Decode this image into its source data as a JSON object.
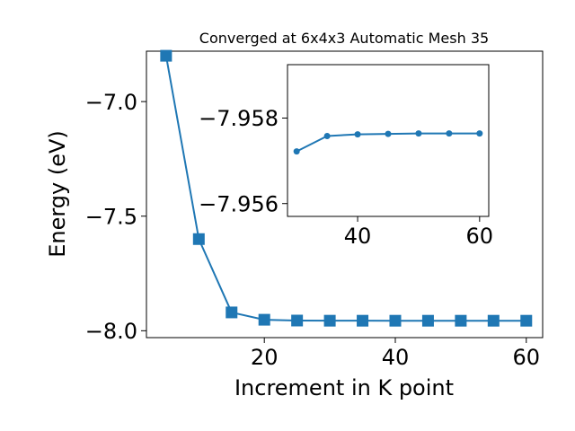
{
  "chart_data": [
    {
      "type": "line",
      "title": "Converged at 6x4x3 Automatic Mesh 35",
      "xlabel": "Increment in K point",
      "ylabel": "Energy (eV)",
      "xlim": [
        2,
        62.5
      ],
      "ylim": [
        -8.03,
        -6.78
      ],
      "xticks": [
        20,
        40,
        60
      ],
      "xtick_labels": [
        "20",
        "40",
        "60"
      ],
      "yticks": [
        -7.0,
        -7.5,
        -8.0
      ],
      "ytick_labels": [
        "−7.0",
        "−7.5",
        "−8.0"
      ],
      "grid": false,
      "marker": "square",
      "color": "#1f77b4",
      "series": [
        {
          "x": [
            5,
            10,
            15,
            20,
            25,
            30,
            35,
            40,
            45,
            50,
            55,
            60
          ],
          "y": [
            -6.8,
            -7.6,
            -7.92,
            -7.952,
            -7.9555,
            -7.9562,
            -7.95625,
            -7.9563,
            -7.9563,
            -7.9563,
            -7.9563,
            -7.9563
          ]
        }
      ]
    },
    {
      "type": "line",
      "title": "",
      "xlabel": "",
      "ylabel": "",
      "xlim": [
        28.5,
        61.5
      ],
      "ylim": [
        -7.9557,
        -7.95925
      ],
      "xticks": [
        40,
        60
      ],
      "xtick_labels": [
        "40",
        "60"
      ],
      "yticks": [
        -7.958,
        -7.956
      ],
      "ytick_labels": [
        "−7.958",
        "−7.956"
      ],
      "grid": false,
      "marker": "circle",
      "color": "#1f77b4",
      "series": [
        {
          "x": [
            30,
            35,
            40,
            45,
            50,
            55,
            60
          ],
          "y": [
            -7.95722,
            -7.95758,
            -7.95762,
            -7.95763,
            -7.95764,
            -7.95764,
            -7.95764
          ]
        }
      ]
    }
  ]
}
